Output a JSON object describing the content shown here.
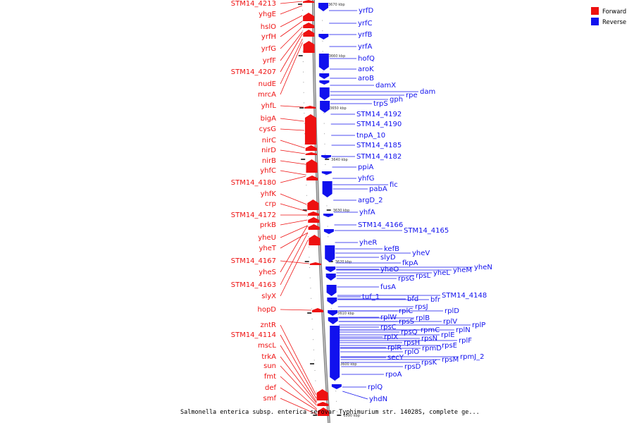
{
  "colors": {
    "forward": "#ee1111",
    "reverse": "#1111ee",
    "backbone": "#777777"
  },
  "legend": {
    "forward": "Forward",
    "reverse": "Reverse"
  },
  "caption": "Salmonella enterica subsp. enterica serovar Typhimurium str. 14028S, complete ge...",
  "scale_labels": [
    "3670 kbp",
    "3660 kbp",
    "3650 kbp",
    "3640 kbp",
    "3630 kbp",
    "3620 kbp",
    "3610 kbp",
    "3600 kbp",
    "3590 kbp"
  ],
  "forward_genes": [
    "STM14_4213",
    "yhgE",
    "hslO",
    "yrfH",
    "yrfG",
    "yrfF",
    "STM14_4207",
    "nudE",
    "mrcA",
    "yhfL",
    "bigA",
    "cysG",
    "nirC",
    "nirD",
    "nirB",
    "yhfC",
    "STM14_4180",
    "yhfK",
    "crp",
    "STM14_4172",
    "prkB",
    "yheU",
    "yheT",
    "STM14_4167",
    "yheS",
    "STM14_4163",
    "slyX",
    "hopD",
    "zntR",
    "STM14_4114",
    "mscL",
    "trkA",
    "sun",
    "fmt",
    "def",
    "smf"
  ],
  "reverse_genes": [
    "yrfD",
    "yrfC",
    "yrfB",
    "yrfA",
    "hofQ",
    "aroK",
    "aroB",
    "damX",
    "dam",
    "rpe",
    "gph",
    "trpS",
    "STM14_4192",
    "STM14_4190",
    "tnpA_10",
    "STM14_4185",
    "STM14_4182",
    "ppiA",
    "yhfG",
    "fic",
    "pabA",
    "argD_2",
    "yhfA",
    "STM14_4166",
    "STM14_4165",
    "yheR",
    "kefB",
    "yheV",
    "slyD",
    "fkpA",
    "yheN",
    "yheM",
    "yheL",
    "yheO",
    "rpsL",
    "rpsG",
    "fusA",
    "tuf_1",
    "bfd",
    "bfr",
    "STM14_4148",
    "rpsJ",
    "rplC",
    "rplD",
    "rplW",
    "rplB",
    "rpsS",
    "rplV",
    "rplP",
    "rpsC",
    "rpmC",
    "rplN",
    "rpsQ",
    "rplE",
    "rplX",
    "rpsN",
    "rpsE",
    "rplF",
    "rpsH",
    "rplR",
    "rpmD",
    "rplO",
    "secY",
    "rpmJ_2",
    "rpsM",
    "rpsK",
    "rpsD",
    "rpoA",
    "rplQ",
    "yhdN"
  ]
}
